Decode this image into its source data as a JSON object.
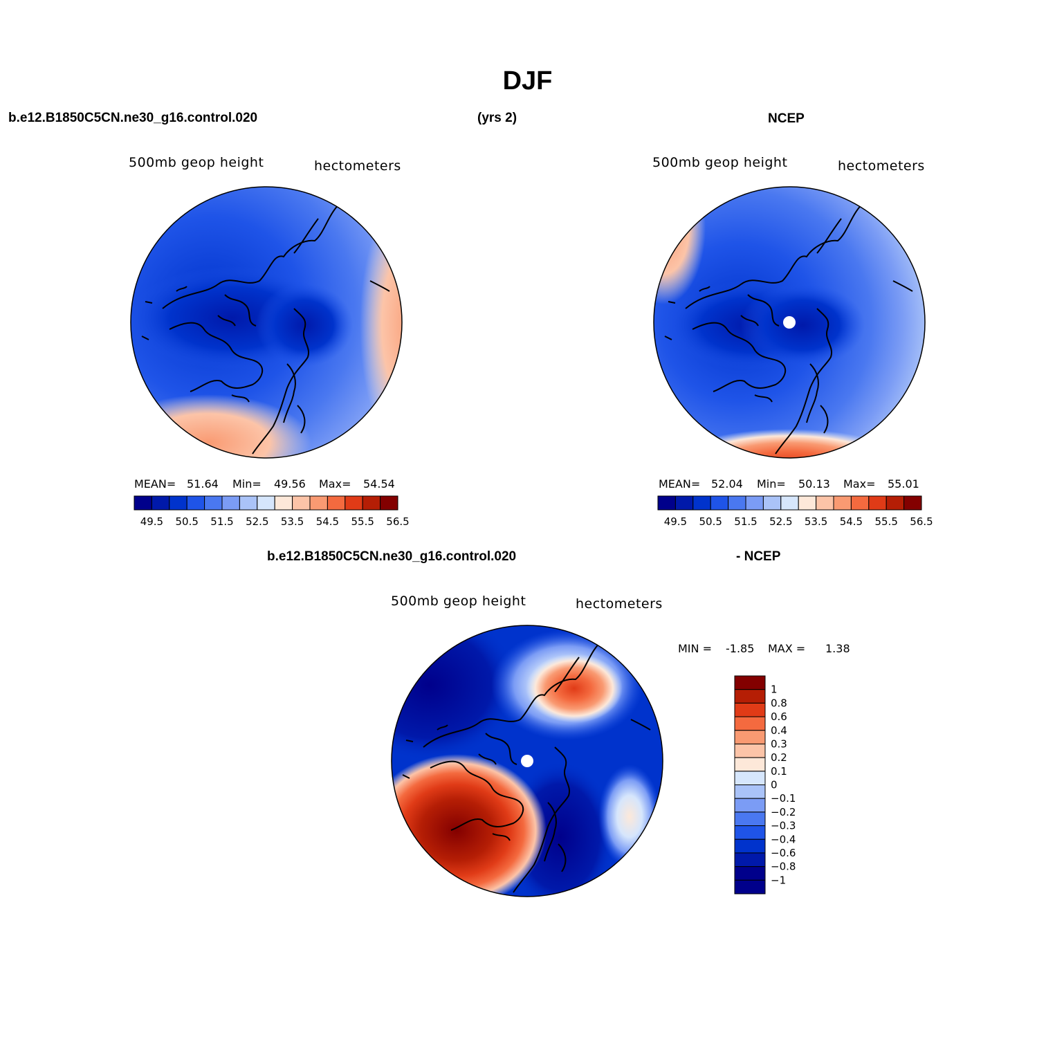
{
  "title": "DJF",
  "header": {
    "case_name": "b.e12.B1850C5CN.ne30_g16.control.020",
    "years": "(yrs 2)",
    "obs_name": "NCEP",
    "diff_case": "b.e12.B1850C5CN.ne30_g16.control.020",
    "diff_obs": "- NCEP"
  },
  "colors": {
    "levels": [
      "#00008b",
      "#0019aa",
      "#0033cc",
      "#1f54e8",
      "#4a78f0",
      "#7b9cf5",
      "#aac3f8",
      "#d6e6fc",
      "#fde8d9",
      "#fcc4a8",
      "#f99a72",
      "#f46a3f",
      "#e03b17",
      "#b51e05",
      "#830000"
    ],
    "coast": "#000000"
  },
  "chart_data": [
    {
      "type": "heatmap",
      "projection": "north-polar-stereographic",
      "field_label": "500mb geop height",
      "units_label": "hectometers",
      "stats": {
        "mean_label": "MEAN=",
        "mean": "51.64",
        "min_label": "Min=",
        "min": "49.56",
        "max_label": "Max=",
        "max": "54.54"
      },
      "colorbar_ticks": [
        "49.5",
        "50.5",
        "51.5",
        "52.5",
        "53.5",
        "54.5",
        "55.5",
        "56.5"
      ],
      "contour_levels": [
        49.5,
        50,
        50.5,
        51,
        51.5,
        52,
        52.5,
        53,
        53.5,
        54,
        54.5,
        55,
        55.5,
        56,
        56.5
      ],
      "legend_position": "bottom"
    },
    {
      "type": "heatmap",
      "projection": "north-polar-stereographic",
      "field_label": "500mb geop height",
      "units_label": "hectometers",
      "stats": {
        "mean_label": "MEAN=",
        "mean": "52.04",
        "min_label": "Min=",
        "min": "50.13",
        "max_label": "Max=",
        "max": "55.01"
      },
      "colorbar_ticks": [
        "49.5",
        "50.5",
        "51.5",
        "52.5",
        "53.5",
        "54.5",
        "55.5",
        "56.5"
      ],
      "contour_levels": [
        49.5,
        50,
        50.5,
        51,
        51.5,
        52,
        52.5,
        53,
        53.5,
        54,
        54.5,
        55,
        55.5,
        56,
        56.5
      ],
      "legend_position": "bottom"
    },
    {
      "type": "heatmap",
      "projection": "north-polar-stereographic",
      "field_label": "500mb geop height",
      "units_label": "hectometers",
      "min_label": "MIN =",
      "min": "-1.85",
      "max_label": "MAX =",
      "max": "1.38",
      "colorbar_ticks": [
        "1",
        "0.8",
        "0.6",
        "0.4",
        "0.3",
        "0.2",
        "0.1",
        "0",
        "-0.1",
        "-0.2",
        "-0.3",
        "-0.4",
        "-0.6",
        "-0.8",
        "-1"
      ],
      "legend_position": "right"
    }
  ]
}
